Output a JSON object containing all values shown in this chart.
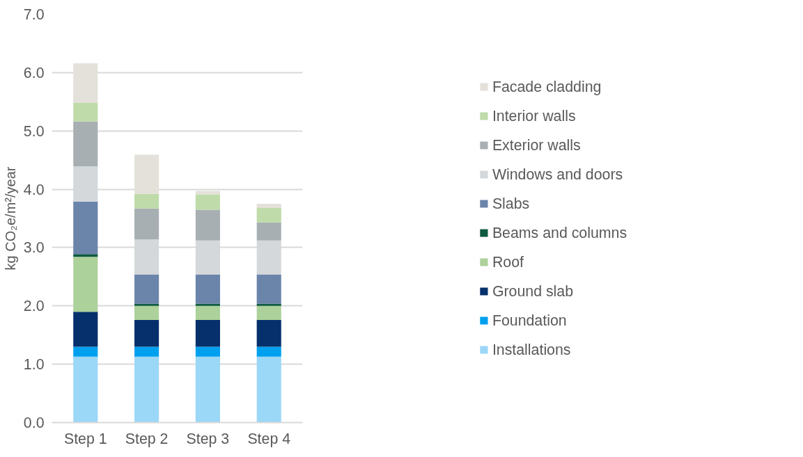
{
  "chart_data": {
    "type": "bar",
    "stacked": true,
    "ylabel": "kg CO₂e/m²/year",
    "categories": [
      "Step 1",
      "Step 2",
      "Step 3",
      "Step 4"
    ],
    "series": [
      {
        "name": "Installations",
        "color": "#9bd7f7",
        "values": [
          1.13,
          1.13,
          1.13,
          1.13
        ]
      },
      {
        "name": "Foundation",
        "color": "#00a0ef",
        "values": [
          0.17,
          0.17,
          0.17,
          0.17
        ]
      },
      {
        "name": "Ground slab",
        "color": "#06306b",
        "values": [
          0.6,
          0.46,
          0.46,
          0.46
        ]
      },
      {
        "name": "Roof",
        "color": "#add19a",
        "values": [
          0.94,
          0.24,
          0.24,
          0.24
        ]
      },
      {
        "name": "Beams and columns",
        "color": "#0e5b42",
        "values": [
          0.05,
          0.04,
          0.04,
          0.04
        ]
      },
      {
        "name": "Slabs",
        "color": "#6b84aa",
        "values": [
          0.9,
          0.5,
          0.5,
          0.5
        ]
      },
      {
        "name": "Windows and doors",
        "color": "#d4d8db",
        "values": [
          0.6,
          0.6,
          0.58,
          0.58
        ]
      },
      {
        "name": "Exterior walls",
        "color": "#a8afb2",
        "values": [
          0.77,
          0.53,
          0.53,
          0.31
        ]
      },
      {
        "name": "Interior walls",
        "color": "#bedba9",
        "values": [
          0.32,
          0.25,
          0.26,
          0.25
        ]
      },
      {
        "name": "Facade cladding",
        "color": "#e3e1d9",
        "values": [
          0.68,
          0.67,
          0.06,
          0.07
        ]
      }
    ],
    "ylim": [
      0,
      7
    ],
    "yticks": [
      {
        "value": 0,
        "label": "0.0"
      },
      {
        "value": 1,
        "label": "1.0"
      },
      {
        "value": 2,
        "label": "2.0"
      },
      {
        "value": 3,
        "label": "3.0"
      },
      {
        "value": 4,
        "label": "4.0"
      },
      {
        "value": 5,
        "label": "5.0"
      },
      {
        "value": 6,
        "label": "6.0"
      },
      {
        "value": 7,
        "label": "7.0"
      }
    ],
    "grid": "y",
    "legend": "right"
  }
}
